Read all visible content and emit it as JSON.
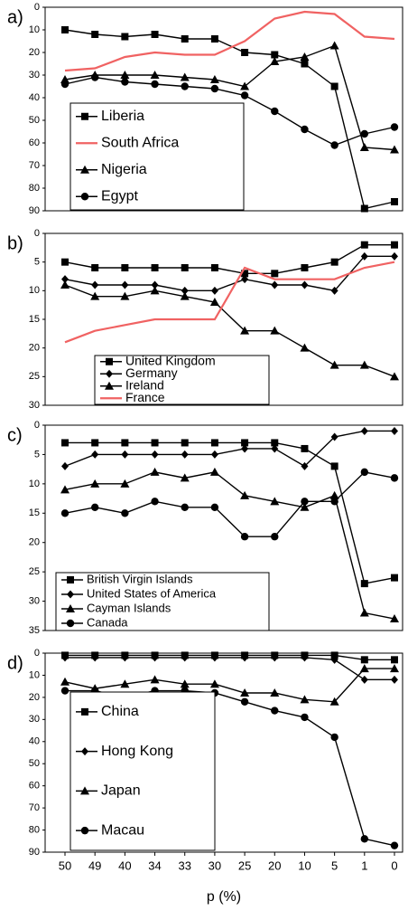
{
  "x_axis": {
    "categories": [
      "50",
      "49",
      "40",
      "34",
      "33",
      "30",
      "25",
      "20",
      "10",
      "5",
      "1",
      "0"
    ],
    "label": "p (%)"
  },
  "chart_data": [
    {
      "type": "line",
      "panel_label": "a)",
      "ylim": [
        0,
        90
      ],
      "yticks": [
        0,
        10,
        20,
        30,
        40,
        50,
        60,
        70,
        80,
        90
      ],
      "inverted": true,
      "series": [
        {
          "name": "Liberia",
          "color": "#000000",
          "marker": "square",
          "values": [
            10,
            12,
            13,
            12,
            14,
            14,
            20,
            21,
            25,
            35,
            89,
            86
          ]
        },
        {
          "name": "South Africa",
          "color": "#f06262",
          "marker": "none",
          "values": [
            28,
            27,
            22,
            20,
            21,
            21,
            15,
            5,
            2,
            3,
            13,
            14
          ]
        },
        {
          "name": "Nigeria",
          "color": "#000000",
          "marker": "triangle",
          "values": [
            32,
            30,
            30,
            30,
            31,
            32,
            35,
            24,
            22,
            17,
            62,
            63
          ]
        },
        {
          "name": "Egypt",
          "color": "#000000",
          "marker": "circle",
          "values": [
            34,
            31,
            33,
            34,
            35,
            36,
            39,
            46,
            54,
            61,
            56,
            53
          ]
        }
      ]
    },
    {
      "type": "line",
      "panel_label": "b)",
      "ylim": [
        0,
        30
      ],
      "yticks": [
        0,
        5,
        10,
        15,
        20,
        25,
        30
      ],
      "inverted": true,
      "series": [
        {
          "name": "United Kingdom",
          "color": "#000000",
          "marker": "square",
          "values": [
            5,
            6,
            6,
            6,
            6,
            6,
            7,
            7,
            6,
            5,
            2,
            2
          ]
        },
        {
          "name": "Germany",
          "color": "#000000",
          "marker": "diamond",
          "values": [
            8,
            9,
            9,
            9,
            10,
            10,
            8,
            9,
            9,
            10,
            4,
            4
          ]
        },
        {
          "name": "Ireland",
          "color": "#000000",
          "marker": "triangle",
          "values": [
            9,
            11,
            11,
            10,
            11,
            12,
            17,
            17,
            20,
            23,
            23,
            25
          ]
        },
        {
          "name": "France",
          "color": "#f06262",
          "marker": "none",
          "values": [
            19,
            17,
            16,
            15,
            15,
            15,
            6,
            8,
            8,
            8,
            6,
            5
          ]
        }
      ]
    },
    {
      "type": "line",
      "panel_label": "c)",
      "ylim": [
        0,
        35
      ],
      "yticks": [
        0,
        5,
        10,
        15,
        20,
        25,
        30,
        35
      ],
      "inverted": true,
      "series": [
        {
          "name": "British Virgin Islands",
          "color": "#000000",
          "marker": "square",
          "values": [
            3,
            3,
            3,
            3,
            3,
            3,
            3,
            3,
            4,
            7,
            27,
            26
          ]
        },
        {
          "name": "United States of America",
          "color": "#000000",
          "marker": "diamond",
          "values": [
            7,
            5,
            5,
            5,
            5,
            5,
            4,
            4,
            7,
            2,
            1,
            1
          ]
        },
        {
          "name": "Cayman Islands",
          "color": "#000000",
          "marker": "triangle",
          "values": [
            11,
            10,
            10,
            8,
            9,
            8,
            12,
            13,
            14,
            12,
            32,
            33
          ]
        },
        {
          "name": "Canada",
          "color": "#000000",
          "marker": "circle",
          "values": [
            15,
            14,
            15,
            13,
            14,
            14,
            19,
            19,
            13,
            13,
            8,
            9
          ]
        }
      ]
    },
    {
      "type": "line",
      "panel_label": "d)",
      "ylim": [
        0,
        90
      ],
      "yticks": [
        0,
        10,
        20,
        30,
        40,
        50,
        60,
        70,
        80,
        90
      ],
      "inverted": true,
      "series": [
        {
          "name": "China",
          "color": "#000000",
          "marker": "square",
          "values": [
            1,
            1,
            1,
            1,
            1,
            1,
            1,
            1,
            1,
            1,
            3,
            3
          ]
        },
        {
          "name": "Hong Kong",
          "color": "#000000",
          "marker": "diamond",
          "values": [
            2,
            2,
            2,
            2,
            2,
            2,
            2,
            2,
            2,
            3,
            12,
            12
          ]
        },
        {
          "name": "Japan",
          "color": "#000000",
          "marker": "triangle",
          "values": [
            13,
            16,
            14,
            12,
            14,
            14,
            18,
            18,
            21,
            22,
            7,
            7
          ]
        },
        {
          "name": "Macau",
          "color": "#000000",
          "marker": "circle",
          "values": [
            17,
            17,
            20,
            17,
            17,
            18,
            22,
            26,
            29,
            38,
            84,
            87
          ]
        }
      ]
    }
  ]
}
